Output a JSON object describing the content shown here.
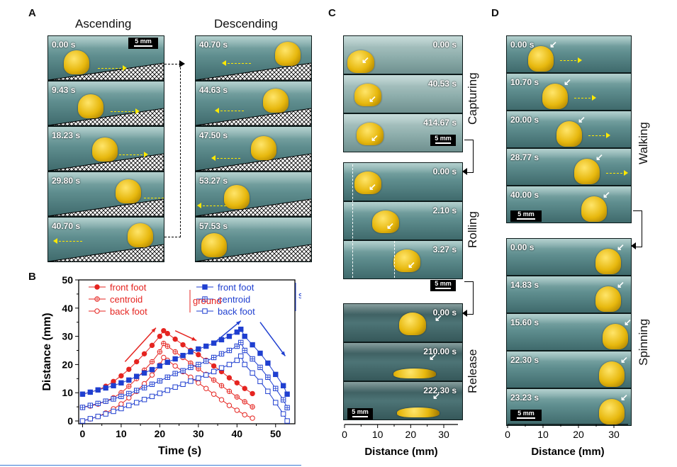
{
  "panels": {
    "a": {
      "label": "A",
      "ascending_title": "Ascending",
      "descending_title": "Descending",
      "scale": "5 mm",
      "ascending_times": [
        "0.00 s",
        "9.43 s",
        "18.23 s",
        "29.80 s",
        "40.70 s"
      ],
      "descending_times": [
        "40.70 s",
        "44.63 s",
        "47.50 s",
        "53.27 s",
        "57.53 s"
      ]
    },
    "b": {
      "label": "B"
    },
    "c": {
      "label": "C",
      "scale": "5 mm",
      "capturing": {
        "label": "Capturing",
        "times": [
          "0.00 s",
          "40.53 s",
          "414.67 s"
        ]
      },
      "rolling": {
        "label": "Rolling",
        "times": [
          "0.00 s",
          "2.10 s",
          "3.27 s"
        ]
      },
      "release": {
        "label": "Release",
        "times": [
          "0.00 s",
          "210.00 s",
          "222.30 s"
        ]
      },
      "xaxis_title": "Distance (mm)",
      "xticks": [
        "0",
        "10",
        "20",
        "30"
      ]
    },
    "d": {
      "label": "D",
      "scale": "5 mm",
      "walking": {
        "label": "Walking",
        "times": [
          "0.00 s",
          "10.70 s",
          "20.00 s",
          "28.77 s",
          "40.00 s"
        ]
      },
      "spinning": {
        "label": "Spinning",
        "times": [
          "0.00 s",
          "14.83 s",
          "15.60 s",
          "22.30 s",
          "23.23 s"
        ]
      },
      "xaxis_title": "Distance (mm)",
      "xticks": [
        "0",
        "10",
        "20",
        "30"
      ]
    }
  },
  "chart_data": {
    "type": "line",
    "xlabel": "Time (s)",
    "ylabel": "Distance (mm)",
    "xlim": [
      -1,
      55
    ],
    "ylim": [
      -1,
      50
    ],
    "xticks": [
      0,
      10,
      20,
      30,
      40,
      50
    ],
    "yticks": [
      0,
      10,
      20,
      30,
      40,
      50
    ],
    "ground_label": "ground",
    "slope_label": "slope",
    "series": [
      {
        "name": "front foot",
        "group": "ground",
        "color": "#e52420",
        "marker": "filled-circle",
        "x": [
          0,
          2,
          4,
          6,
          8,
          10,
          12,
          14,
          16,
          18,
          20,
          21,
          22,
          24,
          26,
          28,
          30,
          32,
          34,
          36,
          38,
          40,
          42,
          44
        ],
        "y": [
          9.5,
          10.2,
          11,
          12.3,
          14,
          16,
          18.3,
          21,
          23.8,
          26.8,
          30,
          32,
          31,
          29,
          27,
          25,
          23.5,
          21.5,
          19.5,
          17.5,
          15.3,
          13.5,
          11.5,
          9.7
        ]
      },
      {
        "name": "centroid",
        "group": "ground",
        "color": "#e52420",
        "marker": "crossed-circle",
        "x": [
          0,
          2,
          4,
          6,
          8,
          10,
          12,
          14,
          16,
          18,
          20,
          21,
          22,
          24,
          26,
          28,
          30,
          32,
          34,
          36,
          38,
          40,
          42,
          44
        ],
        "y": [
          4.8,
          5.3,
          6,
          7,
          8.2,
          10,
          12.3,
          15,
          18,
          21,
          24.5,
          27.5,
          26.5,
          24.5,
          22.5,
          20.5,
          18.5,
          16.5,
          14.5,
          12.5,
          10.5,
          8.5,
          6.8,
          5
        ]
      },
      {
        "name": "back foot",
        "group": "ground",
        "color": "#e52420",
        "marker": "open-circle",
        "x": [
          0,
          2,
          4,
          6,
          8,
          10,
          12,
          14,
          16,
          18,
          20,
          21,
          22,
          24,
          26,
          28,
          30,
          32,
          34,
          36,
          38,
          40,
          42,
          44
        ],
        "y": [
          0,
          0.7,
          1.6,
          2.8,
          4.3,
          6,
          8.2,
          10.5,
          13.2,
          16.3,
          19.8,
          22.5,
          21.5,
          19.5,
          17.5,
          15.5,
          13.5,
          11.5,
          9.5,
          7.5,
          5.5,
          3.8,
          2.2,
          1
        ]
      },
      {
        "name": "front foot",
        "group": "slope",
        "color": "#1f3fd0",
        "marker": "filled-square",
        "x": [
          0,
          2,
          4,
          6,
          8,
          10,
          12,
          14,
          16,
          18,
          20,
          22,
          24,
          26,
          28,
          30,
          32,
          34,
          36,
          38,
          40,
          41,
          42,
          44,
          46,
          48,
          50,
          52,
          53
        ],
        "y": [
          9.5,
          10.2,
          11,
          11.7,
          12.5,
          13.5,
          14.5,
          15.8,
          17,
          18.2,
          19.5,
          20.8,
          22,
          23.2,
          24.5,
          25.5,
          26.5,
          27.6,
          28.8,
          30,
          31.5,
          32.5,
          30,
          27,
          24,
          20.5,
          16.5,
          12.5,
          9.5
        ]
      },
      {
        "name": "centroid",
        "group": "slope",
        "color": "#1f3fd0",
        "marker": "crossed-square",
        "x": [
          0,
          2,
          4,
          6,
          8,
          10,
          12,
          14,
          16,
          18,
          20,
          22,
          24,
          26,
          28,
          30,
          32,
          34,
          36,
          38,
          40,
          41,
          42,
          44,
          46,
          48,
          50,
          52,
          53
        ],
        "y": [
          4.8,
          5.5,
          6.2,
          7,
          7.8,
          8.7,
          9.7,
          10.8,
          11.8,
          13,
          14.2,
          15.5,
          16.8,
          17.8,
          19,
          20,
          21.2,
          22.5,
          23.8,
          25,
          26.5,
          27.8,
          25,
          22,
          19,
          15.5,
          11.5,
          7.5,
          4.7
        ]
      },
      {
        "name": "back foot",
        "group": "slope",
        "color": "#1f3fd0",
        "marker": "open-square",
        "x": [
          0,
          2,
          4,
          6,
          8,
          10,
          12,
          14,
          16,
          18,
          20,
          22,
          24,
          26,
          28,
          30,
          32,
          34,
          36,
          38,
          40,
          41,
          42,
          44,
          46,
          48,
          50,
          52,
          53
        ],
        "y": [
          0,
          0.8,
          1.6,
          2.5,
          3.4,
          4.4,
          5.5,
          6.5,
          7.6,
          8.7,
          9.8,
          10.9,
          12,
          13,
          14.1,
          15.2,
          16.3,
          17.5,
          18.8,
          20,
          21.5,
          23,
          20,
          17,
          14,
          10.5,
          6.5,
          2.5,
          0
        ]
      }
    ]
  }
}
